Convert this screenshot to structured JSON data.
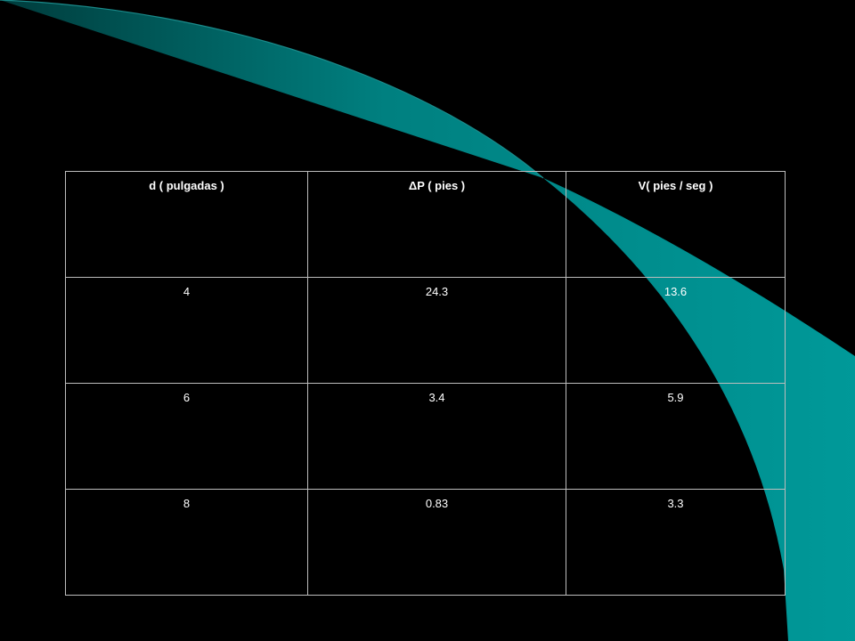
{
  "table": {
    "header": [
      "d ( pulgadas )",
      "ΔP ( pies )",
      "V( pies / seg )"
    ],
    "rows": [
      [
        "4",
        "24.3",
        "13.6"
      ],
      [
        "6",
        "3.4",
        "5.9"
      ],
      [
        "8",
        "0.83",
        "3.3"
      ]
    ]
  }
}
